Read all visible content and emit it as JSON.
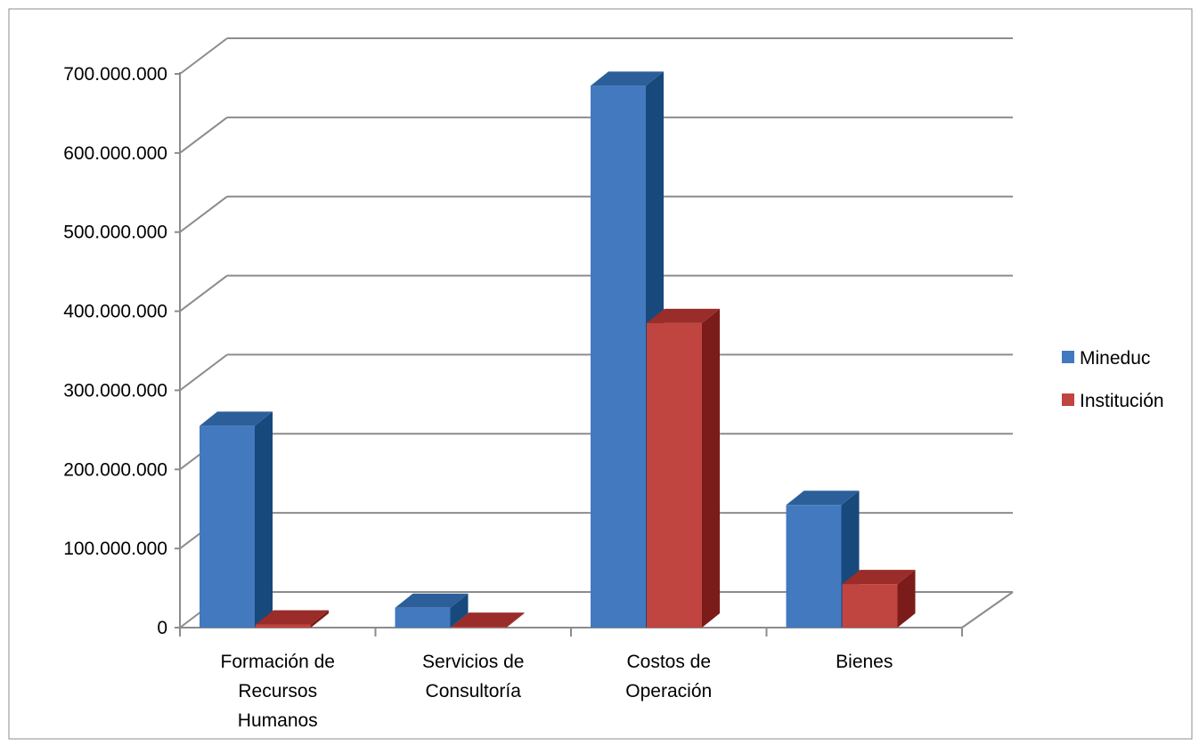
{
  "chart_data": {
    "type": "bar",
    "style": "3d-clustered-column",
    "categories": [
      [
        "Formación de",
        "Recursos",
        "Humanos"
      ],
      [
        "Servicios de",
        "Consultoría"
      ],
      [
        "Costos de",
        "Operación"
      ],
      [
        "Bienes"
      ]
    ],
    "series": [
      {
        "name": "Mineduc",
        "values": [
          255000000,
          25000000,
          685000000,
          155000000
        ]
      },
      {
        "name": "Institución",
        "values": [
          4000000,
          1000000,
          385000000,
          55000000
        ]
      }
    ],
    "y_ticks": [
      {
        "value": 0,
        "label": "0"
      },
      {
        "value": 100000000,
        "label": "100.000.000"
      },
      {
        "value": 200000000,
        "label": "200.000.000"
      },
      {
        "value": 300000000,
        "label": "300.000.000"
      },
      {
        "value": 400000000,
        "label": "400.000.000"
      },
      {
        "value": 500000000,
        "label": "500.000.000"
      },
      {
        "value": 600000000,
        "label": "600.000.000"
      },
      {
        "value": 700000000,
        "label": "700.000.000"
      }
    ],
    "ylim": [
      0,
      700000000
    ],
    "title": "",
    "xlabel": "",
    "ylabel": "",
    "grid": true,
    "legend_position": "right",
    "colors": {
      "series": [
        {
          "front": "#4279bf",
          "side": "#17497c",
          "top": "#2c5f99"
        },
        {
          "front": "#c0443f",
          "side": "#7b1c1a",
          "top": "#9a2c29"
        }
      ],
      "grid": "#8c8c8c",
      "border": "#8c8c8c"
    }
  }
}
